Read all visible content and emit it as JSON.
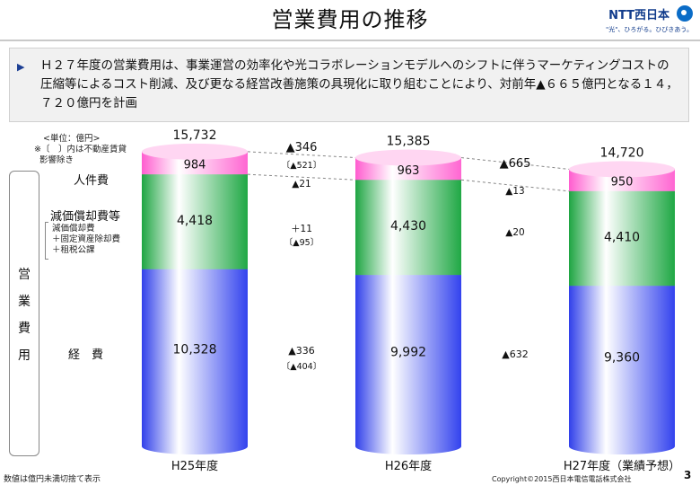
{
  "title": "営業費用の推移",
  "logo": {
    "text": "NTT西日本",
    "tagline": "\"光\"、ひろがる。ひびきあう。"
  },
  "summary": "Ｈ２７年度の営業費用は、事業運営の効率化や光コラボレーションモデルへのシフトに伴うマーケティングコストの圧縮等によるコスト削減、及び更なる経営改善施策の具現化に取り組むことにより、対前年▲６６５億円となる１４，７２０億円を計画",
  "notes": {
    "unit": "<単位：億円>",
    "line2": "※〔　〕内は不動産賃貸",
    "line3": "影響除き",
    "footer_left": "数値は億円未満切捨て表示",
    "copyright": "Copyright©2015西日本電信電話株式会社",
    "page_number": "3"
  },
  "side_labels": {
    "vertical": "営業費用",
    "personnel": "人件費",
    "depreciation": "減価償却費等",
    "dep_detail_1": "減価償却費",
    "dep_detail_2": "＋固定資産除却費",
    "dep_detail_3": "＋租税公課",
    "expenses": "経　費"
  },
  "colors": {
    "personnel": "#ff7fd6",
    "depreciation": "#26b34a",
    "expenses": "#3b4ef0",
    "highlight": "#ffffff"
  },
  "chart_data": {
    "type": "bar",
    "stacked": true,
    "categories": [
      "H25年度",
      "H26年度",
      "H27年度（業績予想）"
    ],
    "series": [
      {
        "name": "経費",
        "values": [
          10328,
          9992,
          9360
        ]
      },
      {
        "name": "減価償却費等",
        "values": [
          4418,
          4430,
          4410
        ]
      },
      {
        "name": "人件費",
        "values": [
          984,
          963,
          950
        ]
      }
    ],
    "totals": [
      "15,732",
      "15,385",
      "14,720"
    ],
    "segment_labels": [
      [
        "10,328",
        "4,418",
        "984"
      ],
      [
        "9,992",
        "4,430",
        "963"
      ],
      [
        "9,360",
        "4,410",
        "950"
      ]
    ],
    "changes": [
      {
        "total": "▲346",
        "total_adj": "〔▲521〕",
        "personnel": "▲21",
        "depreciation": "＋11",
        "depreciation_adj": "〔▲95〕",
        "expenses": "▲336",
        "expenses_adj": "〔▲404〕"
      },
      {
        "total": "▲665",
        "personnel": "▲13",
        "depreciation": "▲20",
        "expenses": "▲632"
      }
    ]
  }
}
